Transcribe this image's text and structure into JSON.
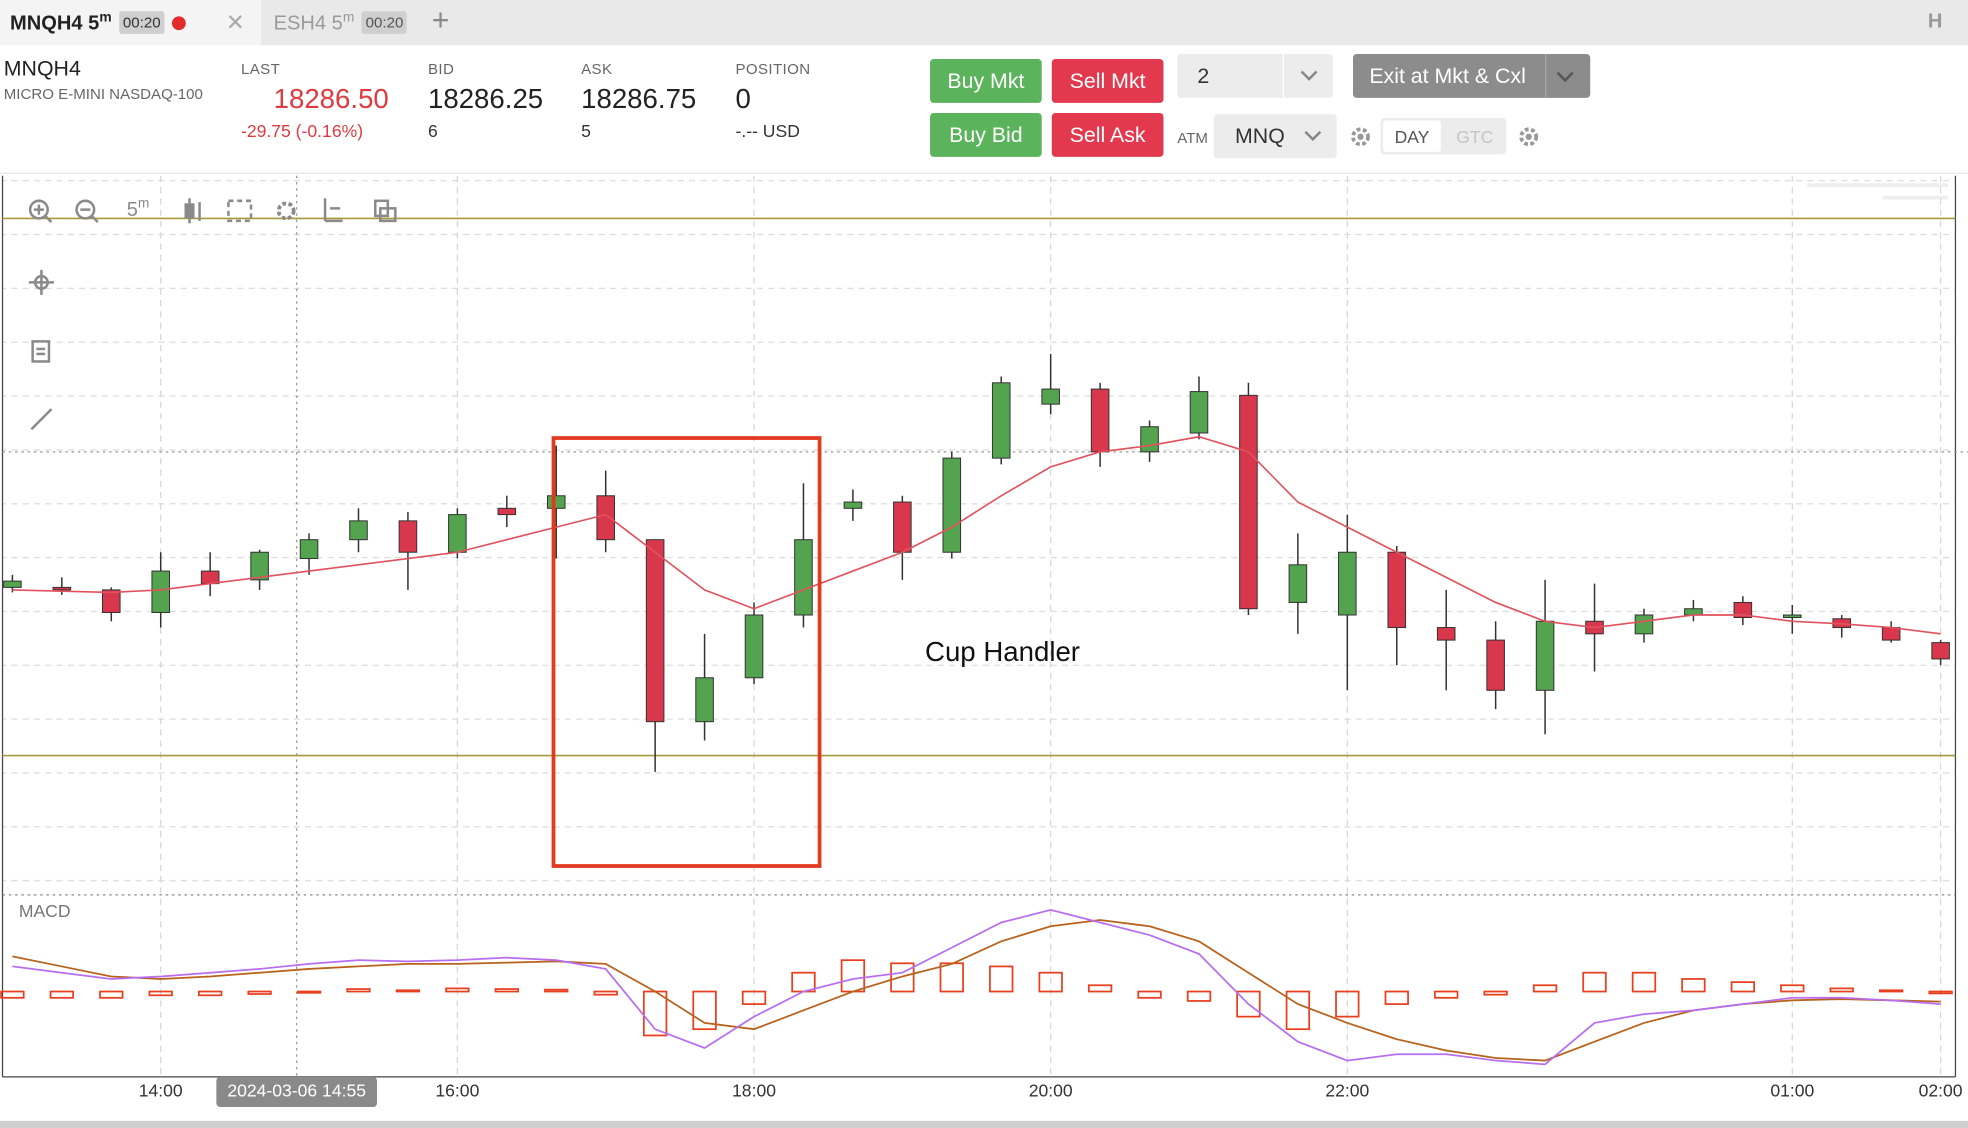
{
  "tabs": [
    {
      "symbol": "MNQH4",
      "interval": "5",
      "interval_unit": "m",
      "timer": "00:20"
    },
    {
      "symbol": "ESH4",
      "interval": "5",
      "interval_unit": "m",
      "timer": "00:20"
    }
  ],
  "tab_bar_right": "H",
  "header": {
    "symbol": "MNQH4",
    "description": "MICRO E-MINI NASDAQ-100",
    "quotes": [
      {
        "label": "LAST",
        "value": "18286.50",
        "detail": "-29.75 (-0.16%)"
      },
      {
        "label": "BID",
        "value": "18286.25",
        "detail": "6"
      },
      {
        "label": "ASK",
        "value": "18286.75",
        "detail": "5"
      },
      {
        "label": "POSITION",
        "value": "0",
        "detail": "-.-- USD"
      }
    ]
  },
  "order_panel": {
    "buy_market": "Buy Mkt",
    "sell_market": "Sell Mkt",
    "quantity": "2",
    "exit": "Exit at Mkt & Cxl",
    "buy_bid": "Buy Bid",
    "sell_ask": "Sell Ask",
    "atm_label": "ATM",
    "atm": "MNQ",
    "tif": [
      "DAY",
      "GTC"
    ]
  },
  "toolbar": {
    "interval": "5",
    "interval_unit": "m"
  },
  "chart_data": [
    {
      "type": "candlestick",
      "open": [
        18315,
        18315,
        18314,
        18305,
        18321.5,
        18318,
        18326.5,
        18334,
        18341.5,
        18329,
        18346.5,
        18346.5,
        18351.5,
        18334,
        18261.5,
        18279,
        18304,
        18346.5,
        18349,
        18329,
        18366.5,
        18388,
        18394,
        18369,
        18376.5,
        18391.5,
        18309,
        18304,
        18329,
        18299,
        18294,
        18274,
        18301.5,
        18296.5,
        18304,
        18309,
        18303,
        18302.5,
        18299,
        18293
      ],
      "high": [
        18320,
        18319,
        18315,
        18329,
        18329,
        18330,
        18336.5,
        18346.5,
        18345,
        18346.5,
        18351.5,
        18371.5,
        18361.5,
        18334,
        18296.5,
        18309,
        18356.5,
        18354,
        18351.5,
        18369,
        18399,
        18408,
        18396.5,
        18381.5,
        18399,
        18396.5,
        18336.5,
        18344,
        18331.5,
        18314,
        18301.5,
        18318,
        18316.5,
        18306.5,
        18310,
        18311.5,
        18308,
        18304,
        18301.5,
        18294
      ],
      "low": [
        18313,
        18312,
        18301.5,
        18299,
        18311.5,
        18314,
        18320,
        18329,
        18314,
        18326.5,
        18339,
        18326.5,
        18329,
        18241.5,
        18254,
        18276.5,
        18299,
        18341.5,
        18318,
        18326.5,
        18364,
        18384,
        18363,
        18365,
        18374,
        18304,
        18296.5,
        18274,
        18284,
        18274,
        18266.5,
        18256.5,
        18281.5,
        18293,
        18301.5,
        18300,
        18296.5,
        18295,
        18293,
        18284
      ],
      "close": [
        18317.5,
        18314,
        18305,
        18321.5,
        18316.5,
        18329,
        18334,
        18341.5,
        18329,
        18344,
        18344,
        18351.5,
        18334,
        18261.5,
        18279,
        18304,
        18334,
        18349,
        18329,
        18366.5,
        18396.5,
        18394,
        18369,
        18379,
        18393,
        18306.5,
        18324,
        18329,
        18299,
        18294,
        18274,
        18301.5,
        18296.5,
        18304,
        18306.5,
        18303,
        18304,
        18299,
        18294,
        18286.5
      ],
      "ma": [
        18314,
        18313.5,
        18313,
        18314,
        18316.5,
        18319,
        18321.5,
        18324,
        18326.5,
        18329,
        18334,
        18339,
        18344,
        18329,
        18314,
        18306.5,
        18314,
        18321.5,
        18329,
        18339,
        18351.5,
        18363,
        18369,
        18371.5,
        18375,
        18369,
        18349,
        18339,
        18329,
        18319,
        18309,
        18301.5,
        18299,
        18301.5,
        18304,
        18304,
        18301.5,
        18300.5,
        18299,
        18296.5
      ],
      "up_color": "#54a34f",
      "down_color": "#d8374c",
      "ma_color": "#e2525e",
      "price_lines": [
        18462,
        18248
      ],
      "price_line_color": "#a8993a",
      "xlim": [
        -0.2,
        39.3
      ],
      "ylim": [
        18193,
        18479
      ],
      "xticks": [
        {
          "value": 3,
          "label": "14:00"
        },
        {
          "value": 9,
          "label": "16:00"
        },
        {
          "value": 15,
          "label": "18:00"
        },
        {
          "value": 21,
          "label": "20:00"
        },
        {
          "value": 27,
          "label": "22:00"
        },
        {
          "value": 36,
          "label": "01:00"
        },
        {
          "value": 39,
          "label": "02:00"
        }
      ],
      "crosshair": {
        "value": 5.75,
        "label": "2024-03-06 14:55",
        "price": 18369
      },
      "annotation": "Cup Handler",
      "grid": true
    },
    {
      "type": "macd",
      "title": "MACD",
      "macd": [
        4,
        3,
        2,
        2.4,
        3,
        3.6,
        4.4,
        5,
        4.8,
        5,
        5.4,
        5,
        3.6,
        -6,
        -9,
        -4,
        0,
        2,
        3,
        7,
        11,
        13,
        11,
        9,
        6,
        -2,
        -8,
        -11,
        -10,
        -10,
        -11,
        -11.6,
        -5,
        -3.6,
        -3,
        -2,
        -1,
        -1,
        -1.4,
        -2
      ],
      "signal": [
        5.6,
        4,
        2.4,
        2,
        2.4,
        3,
        3.6,
        4,
        4.4,
        4.4,
        4.6,
        4.8,
        4.4,
        0,
        -5,
        -6,
        -3,
        0,
        2.4,
        4.4,
        8,
        10.4,
        11.4,
        10.4,
        8,
        3,
        -2,
        -5,
        -7.6,
        -9.4,
        -10.6,
        -11,
        -8,
        -5,
        -3,
        -2,
        -1.4,
        -1.2,
        -1.4,
        -1.6
      ],
      "histogram": [
        -1,
        -1,
        -1,
        -0.6,
        -0.6,
        -0.4,
        -0.2,
        0.4,
        0.2,
        0.5,
        0.4,
        0.3,
        -0.5,
        -7,
        -6,
        -2,
        3,
        5,
        4.5,
        4.5,
        4,
        3,
        1,
        -1,
        -1.5,
        -4,
        -6,
        -4,
        -2,
        -1,
        -0.5,
        1,
        3,
        3,
        2,
        1.5,
        1,
        0.5,
        0.2,
        -0.3
      ],
      "macd_color": "#b86ef0",
      "signal_color": "#b8621c",
      "histogram_color": "#e8401f",
      "ylim": [
        -13.6,
        15
      ]
    }
  ]
}
